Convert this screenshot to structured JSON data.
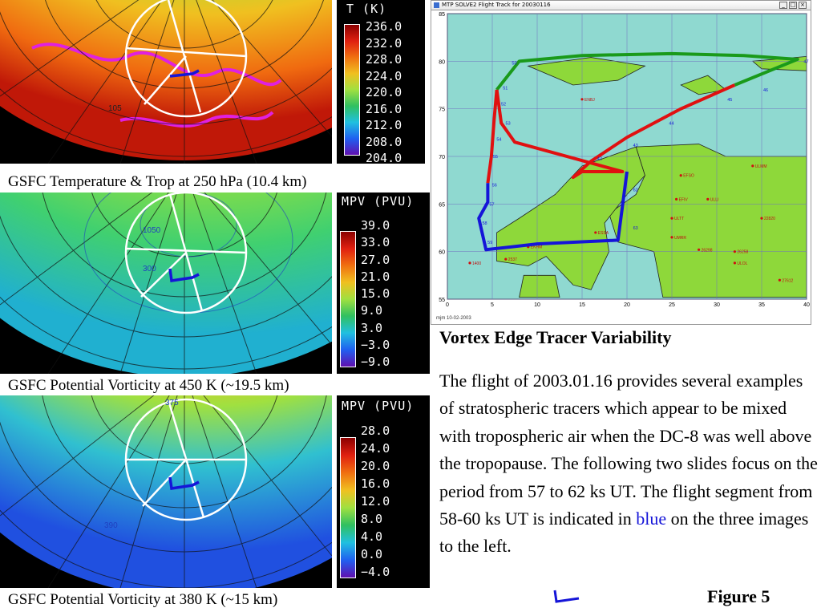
{
  "panels": [
    {
      "id": "temp",
      "caption": "GSFC Temperature & Trop at 250 hPa (10.4 km)",
      "colorbar_title": "T (K)",
      "ticks": [
        "236.0",
        "232.0",
        "228.0",
        "224.0",
        "220.0",
        "216.0",
        "212.0",
        "208.0",
        "204.0"
      ],
      "map_labels": [
        "105"
      ]
    },
    {
      "id": "pv450",
      "caption": "GSFC Potential Vorticity at 450 K (~19.5 km)",
      "colorbar_title": "MPV (PVU)",
      "ticks": [
        "39.0",
        "33.0",
        "27.0",
        "21.0",
        "15.0",
        "9.0",
        "3.0",
        "−3.0",
        "−9.0"
      ],
      "map_labels": [
        "1050",
        "300"
      ]
    },
    {
      "id": "pv380",
      "caption": "GSFC Potential Vorticity at 380 K (~15 km)",
      "colorbar_title": "MPV (PVU)",
      "ticks": [
        "28.0",
        "24.0",
        "20.0",
        "16.0",
        "12.0",
        "8.0",
        "4.0",
        "0.0",
        "−4.0"
      ],
      "map_labels": [
        "390",
        "375"
      ]
    }
  ],
  "flight_window": {
    "title": "MTP SOLVE2 Flight Track for 20030116",
    "buttons": [
      "_",
      "□",
      "×"
    ],
    "footer": "mjm 10-02-2003"
  },
  "chart_data": {
    "type": "line",
    "title": "",
    "xlabel": "",
    "ylabel": "",
    "xlim": [
      0,
      40
    ],
    "ylim": [
      55,
      85
    ],
    "x_ticks": [
      "0",
      "5",
      "10",
      "15",
      "20",
      "25",
      "30",
      "35",
      "40"
    ],
    "y_ticks": [
      "85",
      "80",
      "75",
      "70",
      "65",
      "60",
      "55"
    ],
    "series": [
      {
        "color": "#1a9a1a",
        "points": [
          [
            5.5,
            77
          ],
          [
            8,
            80
          ],
          [
            15,
            80.6
          ],
          [
            25,
            80.8
          ],
          [
            33,
            80.6
          ],
          [
            39,
            80.2
          ],
          [
            32,
            77.5
          ]
        ]
      },
      {
        "color": "#e01010",
        "points": [
          [
            32,
            77.5
          ],
          [
            26,
            75
          ],
          [
            20,
            72
          ],
          [
            16,
            69.5
          ],
          [
            14,
            67.8
          ],
          [
            15,
            68.4
          ],
          [
            19.5,
            68.4
          ],
          [
            7.5,
            71.5
          ],
          [
            6,
            73.5
          ],
          [
            5.5,
            77
          ]
        ]
      },
      {
        "color": "#e01010",
        "points": [
          [
            5.5,
            77
          ],
          [
            5.2,
            73.8
          ],
          [
            4.9,
            70
          ],
          [
            4.5,
            67.2
          ]
        ]
      },
      {
        "color": "#1515d8",
        "points": [
          [
            4.5,
            67.2
          ],
          [
            4.5,
            65.2
          ],
          [
            3.5,
            63.5
          ],
          [
            4.3,
            60.2
          ],
          [
            10,
            60.8
          ],
          [
            19,
            61.2
          ],
          [
            20,
            68.4
          ]
        ]
      }
    ],
    "waypoint_numbers": [
      "47",
      "46",
      "45",
      "44",
      "43",
      "42",
      "53",
      "52",
      "51",
      "50",
      "54",
      "55",
      "56",
      "57",
      "58",
      "59",
      "62",
      "63"
    ],
    "station_labels": [
      "ENBJ",
      "ULMM",
      "EFSO",
      "EFIV",
      "ULLI",
      "ESSA",
      "ULTT",
      "UMRR",
      "EKHM",
      "2537",
      "1400",
      "26298",
      "26258",
      "27612",
      "22820",
      "ULOL"
    ]
  },
  "body": {
    "title": "Vortex Edge Tracer Variability",
    "text_before": "The flight of 2003.01.16 provides several examples of stratospheric tracers which appear to be mixed with tropospheric air when the DC-8 was well above the tropopause. The following two slides focus on the period from 57 to 62 ks UT. The flight segment from 58-60 ks UT is indicated in ",
    "text_blue": "blue",
    "text_after": " on the three images to the left.",
    "figure_label": "Figure 5"
  },
  "colors": {
    "track_blue": "#1515d8",
    "track_red": "#e01010",
    "track_green": "#1a9a1a",
    "ocean": "#8fd9d0",
    "land": "#8ed83a"
  }
}
